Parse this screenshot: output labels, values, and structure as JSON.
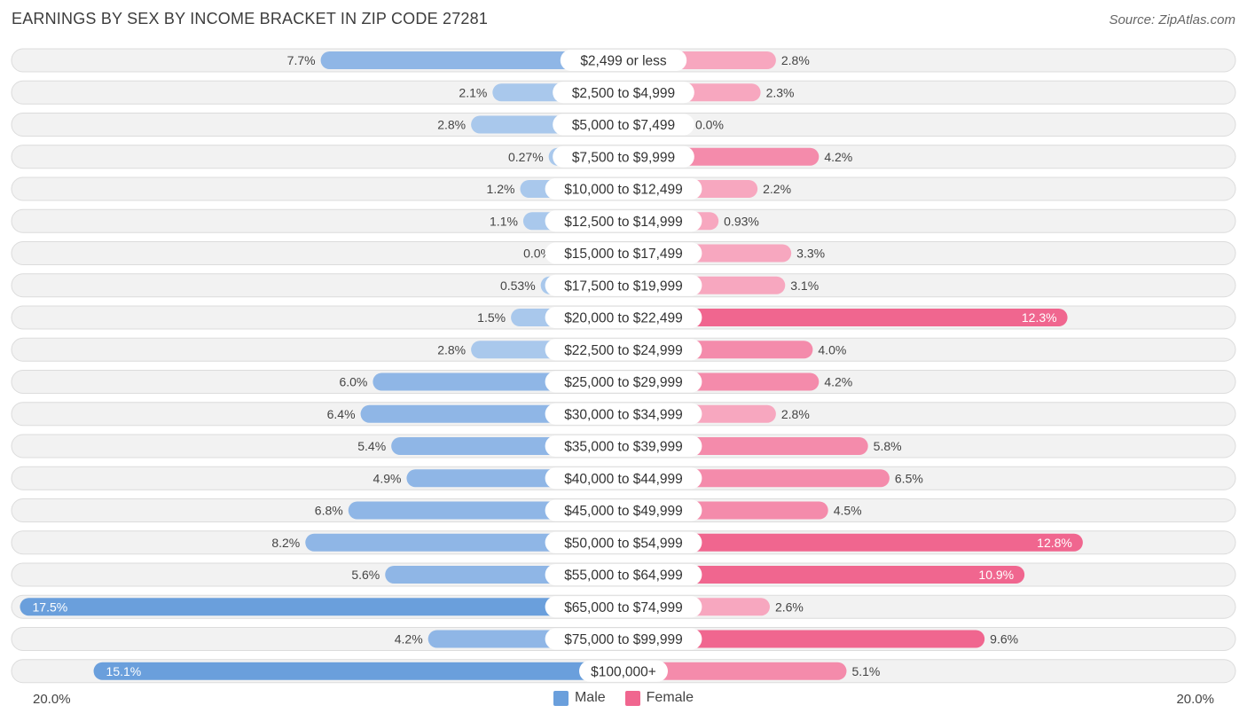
{
  "header": {
    "title": "EARNINGS BY SEX BY INCOME BRACKET IN ZIP CODE 27281",
    "source": "Source: ZipAtlas.com"
  },
  "colors": {
    "male": "#6a9fdc",
    "male_light": "#a9c8ec",
    "female": "#f0668f",
    "female_light": "#f7a7bf",
    "row_bg": "#f2f2f2",
    "row_border": "#dcdcdc"
  },
  "chart_data": {
    "type": "bar",
    "orientation": "horizontal-diverging",
    "title": "EARNINGS BY SEX BY INCOME BRACKET IN ZIP CODE 27281",
    "categories": [
      "$2,499 or less",
      "$2,500 to $4,999",
      "$5,000 to $7,499",
      "$7,500 to $9,999",
      "$10,000 to $12,499",
      "$12,500 to $14,999",
      "$15,000 to $17,499",
      "$17,500 to $19,999",
      "$20,000 to $22,499",
      "$22,500 to $24,999",
      "$25,000 to $29,999",
      "$30,000 to $34,999",
      "$35,000 to $39,999",
      "$40,000 to $44,999",
      "$45,000 to $49,999",
      "$50,000 to $54,999",
      "$55,000 to $64,999",
      "$65,000 to $74,999",
      "$75,000 to $99,999",
      "$100,000+"
    ],
    "series": [
      {
        "name": "Male",
        "values": [
          7.7,
          2.1,
          2.8,
          0.27,
          1.2,
          1.1,
          0.0,
          0.53,
          1.5,
          2.8,
          6.0,
          6.4,
          5.4,
          4.9,
          6.8,
          8.2,
          5.6,
          17.5,
          4.2,
          15.1
        ],
        "labels": [
          "7.7%",
          "2.1%",
          "2.8%",
          "0.27%",
          "1.2%",
          "1.1%",
          "0.0%",
          "0.53%",
          "1.5%",
          "2.8%",
          "6.0%",
          "6.4%",
          "5.4%",
          "4.9%",
          "6.8%",
          "8.2%",
          "5.6%",
          "17.5%",
          "4.2%",
          "15.1%"
        ]
      },
      {
        "name": "Female",
        "values": [
          2.8,
          2.3,
          0.0,
          4.2,
          2.2,
          0.93,
          3.3,
          3.1,
          12.3,
          4.0,
          4.2,
          2.8,
          5.8,
          6.5,
          4.5,
          12.8,
          10.9,
          2.6,
          9.6,
          5.1
        ],
        "labels": [
          "2.8%",
          "2.3%",
          "0.0%",
          "4.2%",
          "2.2%",
          "0.93%",
          "3.3%",
          "3.1%",
          "12.3%",
          "4.0%",
          "4.2%",
          "2.8%",
          "5.8%",
          "6.5%",
          "4.5%",
          "12.8%",
          "10.9%",
          "2.6%",
          "9.6%",
          "5.1%"
        ]
      }
    ],
    "xlim": [
      -20,
      20
    ],
    "axis_labels": {
      "left": "20.0%",
      "right": "20.0%"
    },
    "legend": [
      "Male",
      "Female"
    ],
    "legend_position": "bottom-center"
  }
}
